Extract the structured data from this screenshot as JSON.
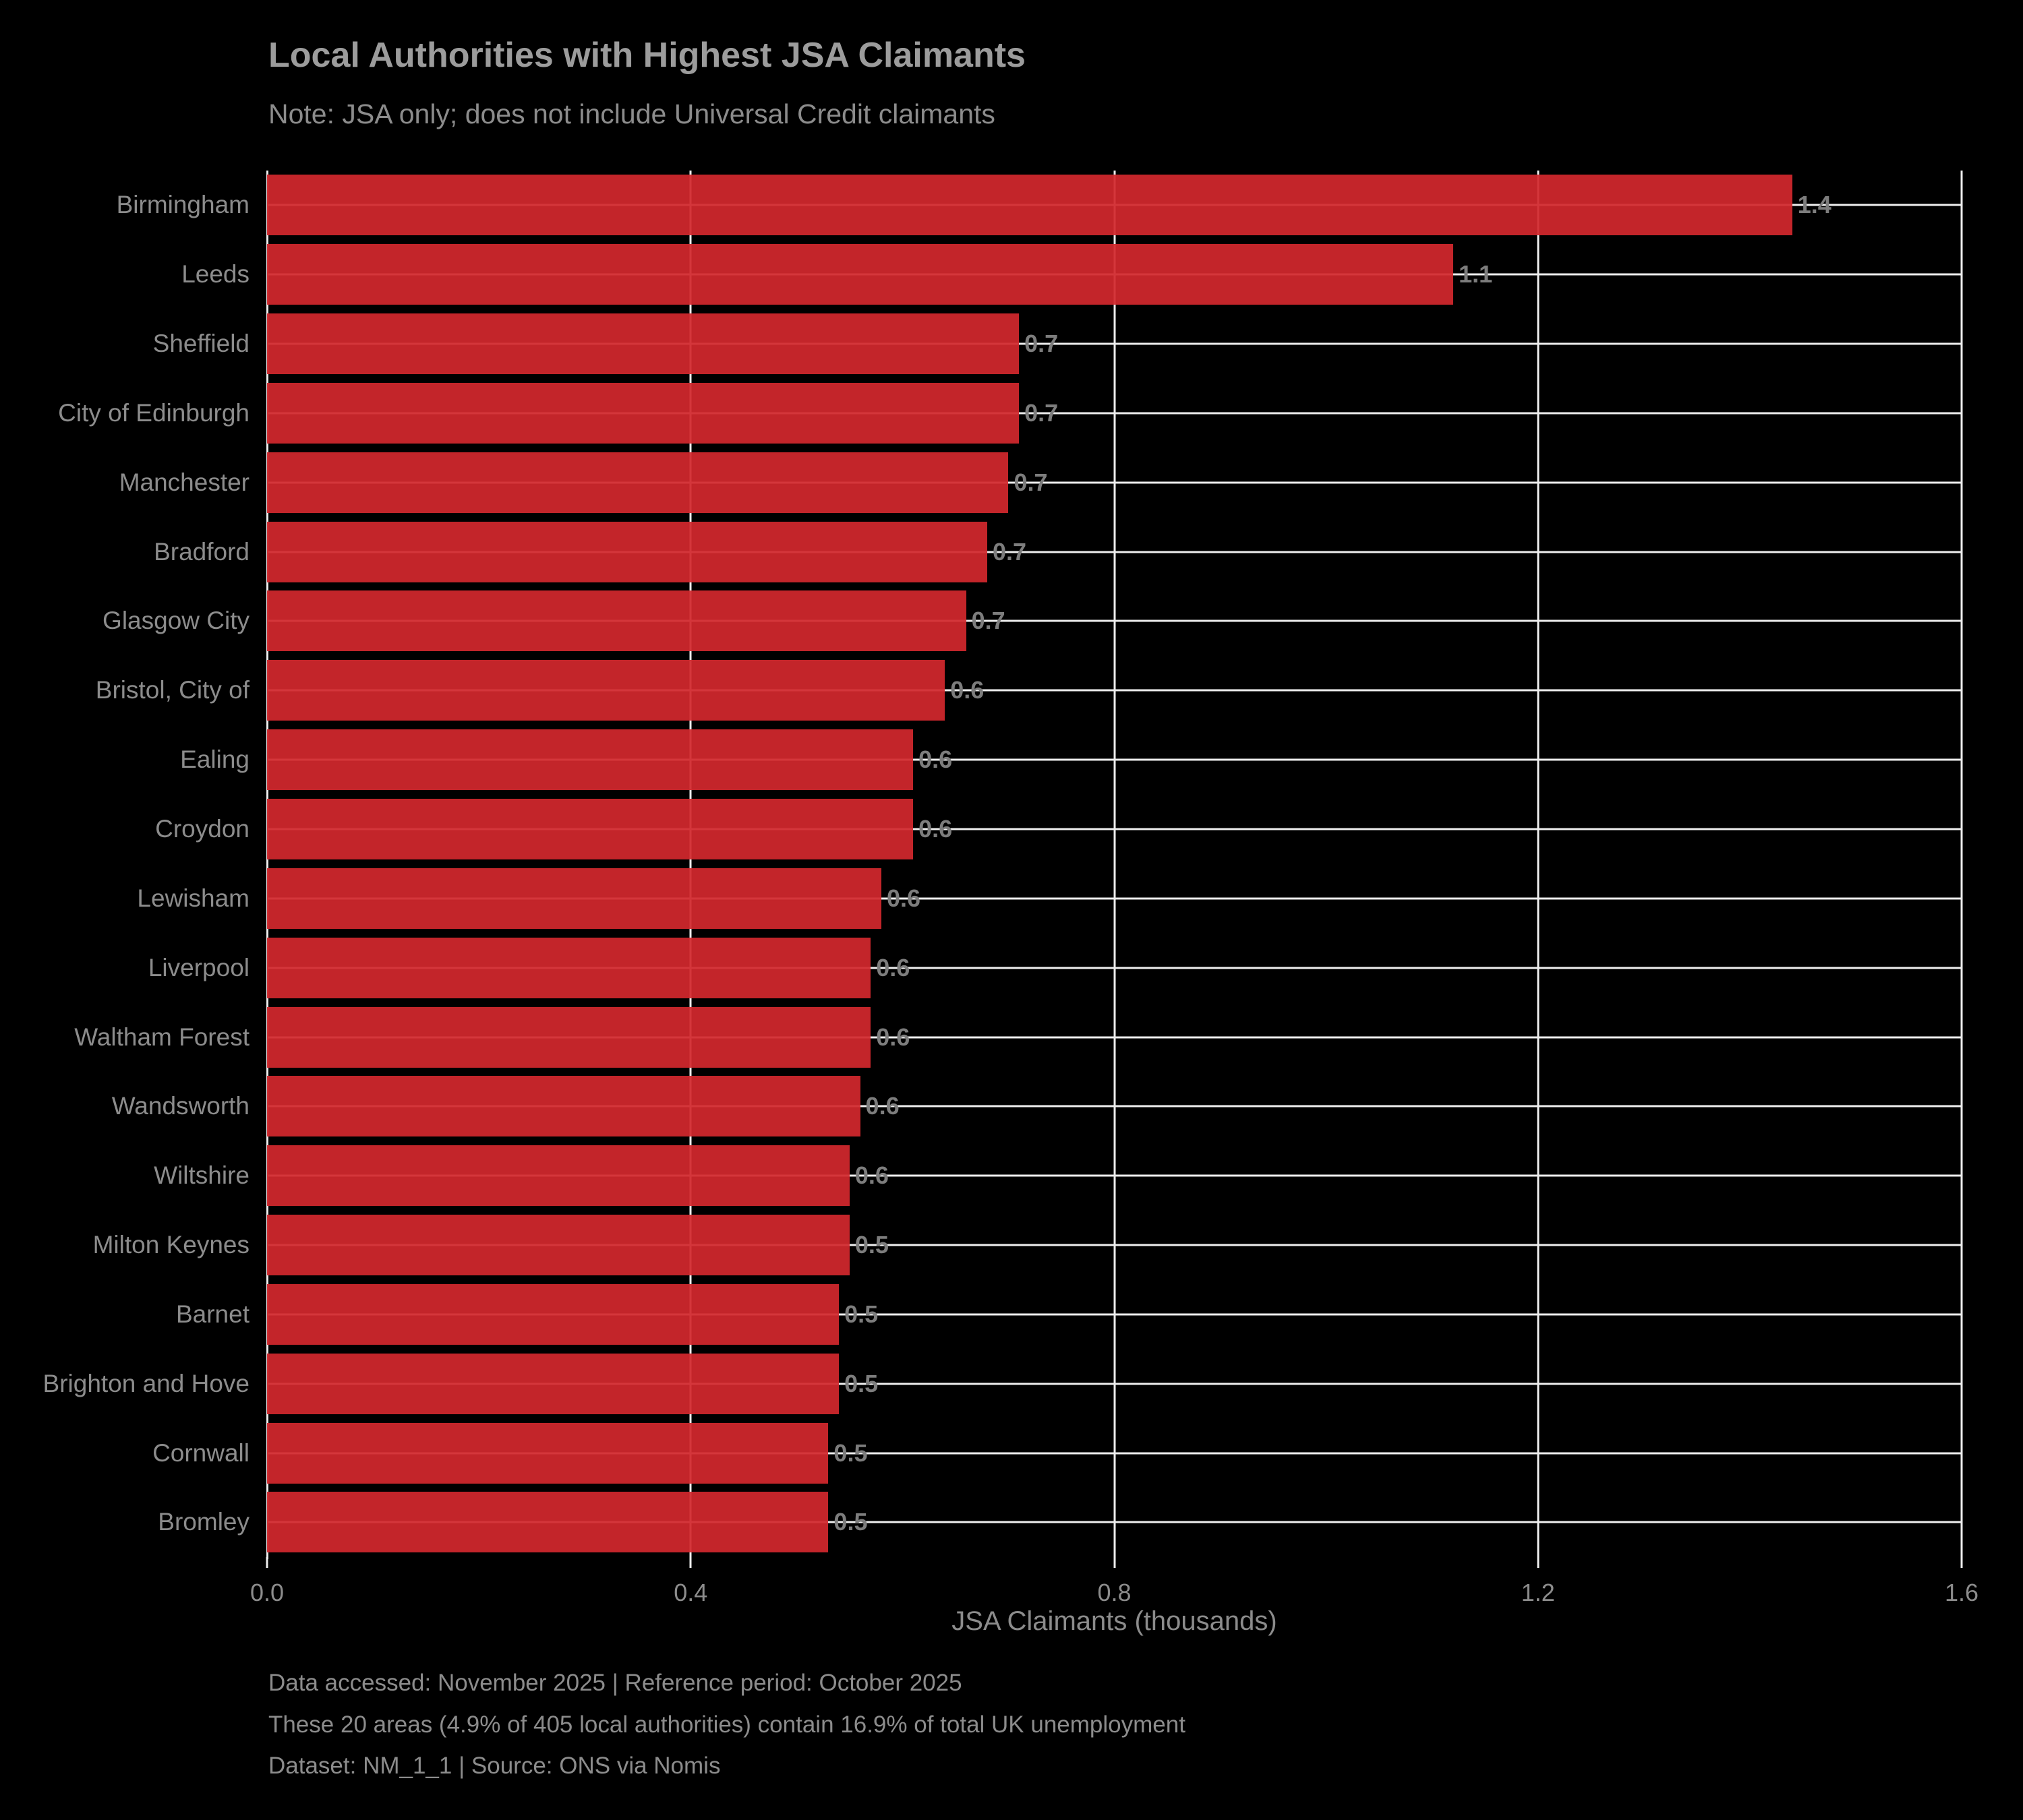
{
  "chart_data": {
    "type": "bar",
    "orientation": "horizontal",
    "title": "Local Authorities with Highest JSA Claimants",
    "subtitle": "Note: JSA only; does not include Universal Credit claimants",
    "xlabel": "JSA Claimants (thousands)",
    "ylabel": "",
    "xlim": [
      0.0,
      1.6
    ],
    "xticks": [
      0.0,
      0.4,
      0.8,
      1.2,
      1.6
    ],
    "xtick_labels": [
      "0.0",
      "0.4",
      "0.8",
      "1.2",
      "1.6"
    ],
    "grid": true,
    "legend": false,
    "categories": [
      "Birmingham",
      "Leeds",
      "Sheffield",
      "City of Edinburgh",
      "Manchester",
      "Bradford",
      "Glasgow City",
      "Bristol, City of",
      "Ealing",
      "Croydon",
      "Lewisham",
      "Liverpool",
      "Waltham Forest",
      "Wandsworth",
      "Wiltshire",
      "Milton Keynes",
      "Barnet",
      "Brighton and Hove",
      "Cornwall",
      "Bromley"
    ],
    "values": [
      1.44,
      1.12,
      0.71,
      0.71,
      0.7,
      0.68,
      0.66,
      0.64,
      0.61,
      0.61,
      0.58,
      0.57,
      0.57,
      0.56,
      0.55,
      0.55,
      0.54,
      0.54,
      0.53,
      0.53
    ],
    "bar_labels": [
      "1.4",
      "1.1",
      "0.7",
      "0.7",
      "0.7",
      "0.7",
      "0.7",
      "0.6",
      "0.6",
      "0.6",
      "0.6",
      "0.6",
      "0.6",
      "0.6",
      "0.6",
      "0.5",
      "0.5",
      "0.5",
      "0.5",
      "0.5"
    ],
    "colors": {
      "background": "#000000",
      "bar": "#d2282d",
      "gridline": "#eeeeee",
      "axis_text": "#8c8c8c",
      "title_text": "#9c9c9c",
      "value_label_text": "#7d7d7d"
    }
  },
  "footer": {
    "line1": "Data accessed: November 2025 | Reference period: October 2025",
    "line2": "These 20 areas (4.9% of 405 local authorities) contain 16.9% of total UK unemployment",
    "line3": "Dataset: NM_1_1 | Source: ONS via Nomis"
  }
}
